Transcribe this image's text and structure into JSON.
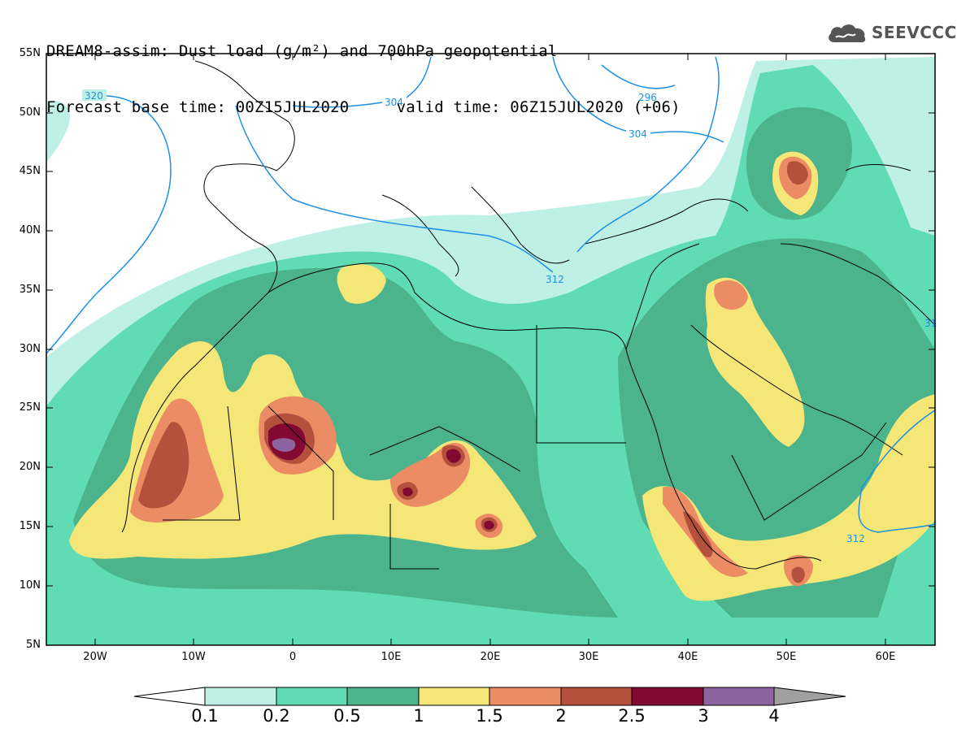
{
  "title": {
    "line1": "DREAM8-assim: Dust load (g/m²) and 700hPa geopotential",
    "line2": "Forecast base time: 00Z15JUL2020     valid time: 06Z15JUL2020 (+06)"
  },
  "logo": {
    "text": "SEEVCCC",
    "icon": "cloud-icon"
  },
  "axes": {
    "lat_labels": [
      "55N",
      "50N",
      "45N",
      "40N",
      "35N",
      "30N",
      "25N",
      "20N",
      "15N",
      "10N",
      "5N"
    ],
    "lon_labels": [
      "20W",
      "10W",
      "0",
      "10E",
      "20E",
      "30E",
      "40E",
      "50E",
      "60E"
    ]
  },
  "contours": {
    "labels": [
      "320",
      "304",
      "296",
      "304",
      "312",
      "312",
      "31"
    ]
  },
  "colorbar": {
    "levels": [
      "0.1",
      "0.2",
      "0.5",
      "1",
      "1.5",
      "2",
      "2.5",
      "3",
      "4"
    ],
    "colors": [
      "#ffffff",
      "#bff0e6",
      "#5fdcb4",
      "#4bb48c",
      "#f5e678",
      "#eb8c64",
      "#b4503c",
      "#820a32",
      "#8c64a0",
      "#a0a0a0"
    ]
  },
  "palette": {
    "lightcyan": "#bff0e6",
    "green": "#5fdcb4",
    "darkgreen": "#4bb48c",
    "yellow": "#f5e678",
    "orange": "#eb8c64",
    "brown": "#b4503c",
    "maroon": "#820a32",
    "purple": "#8c64a0",
    "contour": "#1e90e6"
  }
}
